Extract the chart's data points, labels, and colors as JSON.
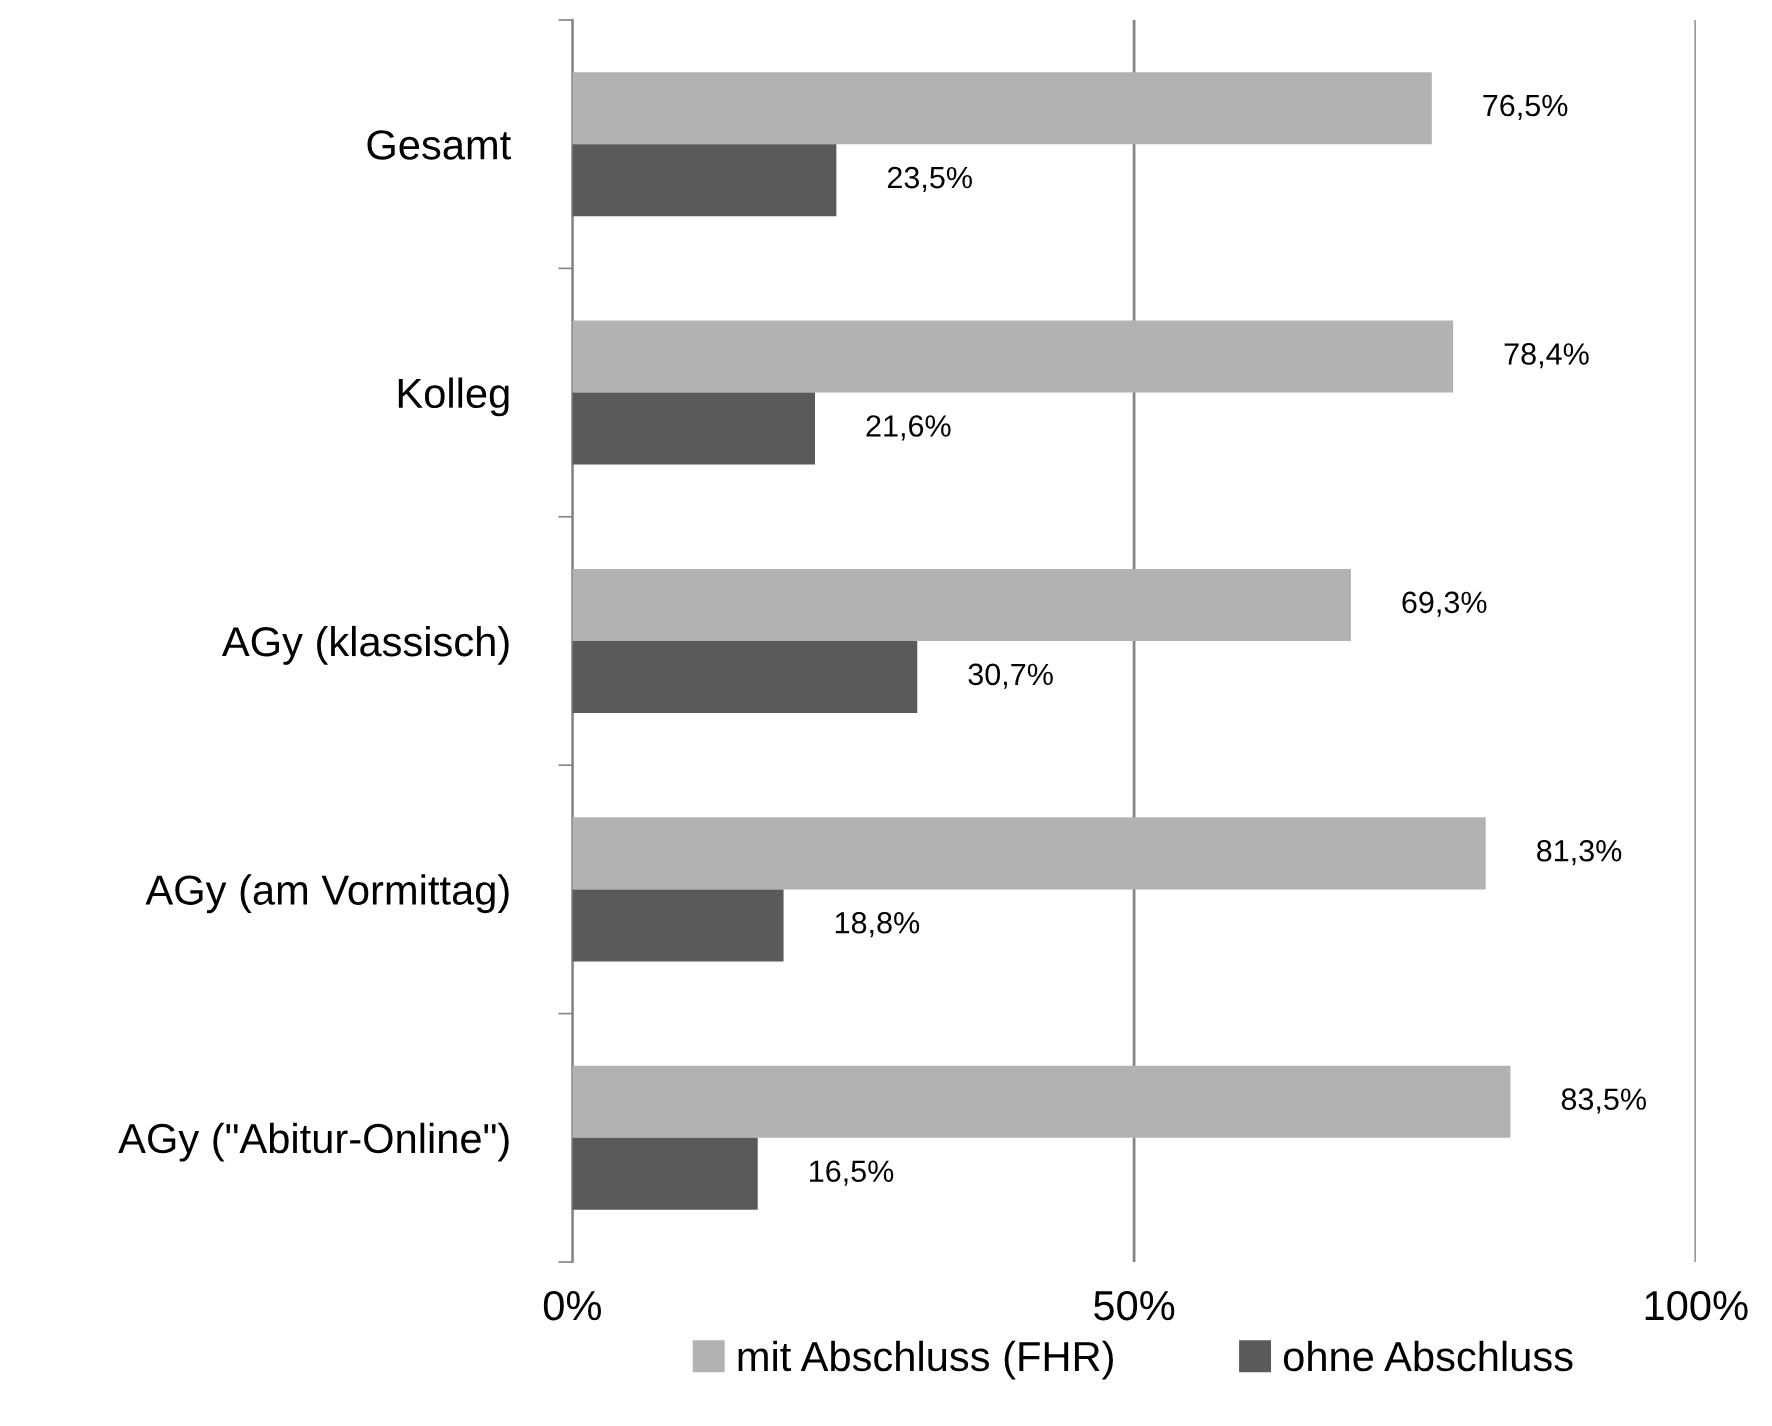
{
  "chart_data": {
    "type": "bar",
    "orientation": "horizontal",
    "categories": [
      "Gesamt",
      "Kolleg",
      "AGy (klassisch)",
      "AGy (am Vormittag)",
      "AGy (\"Abitur-Online\")"
    ],
    "series": [
      {
        "name": "mit Abschluss (FHR)",
        "color": "#b2b2b2",
        "values": [
          76.5,
          78.4,
          69.3,
          81.3,
          83.5
        ],
        "value_labels": [
          "76,5%",
          "78,4%",
          "69,3%",
          "81,3%",
          "83,5%"
        ]
      },
      {
        "name": "ohne Abschluss",
        "color": "#5a5a5a",
        "values": [
          23.5,
          21.6,
          30.7,
          18.8,
          16.5
        ],
        "value_labels": [
          "23,5%",
          "21,6%",
          "30,7%",
          "18,8%",
          "16,5%"
        ]
      }
    ],
    "xlim": [
      0,
      100
    ],
    "xticks": [
      {
        "value": 0,
        "label": "0%"
      },
      {
        "value": 50,
        "label": "50%"
      },
      {
        "value": 100,
        "label": "100%"
      }
    ],
    "grid": "x",
    "legend": "bottom"
  }
}
